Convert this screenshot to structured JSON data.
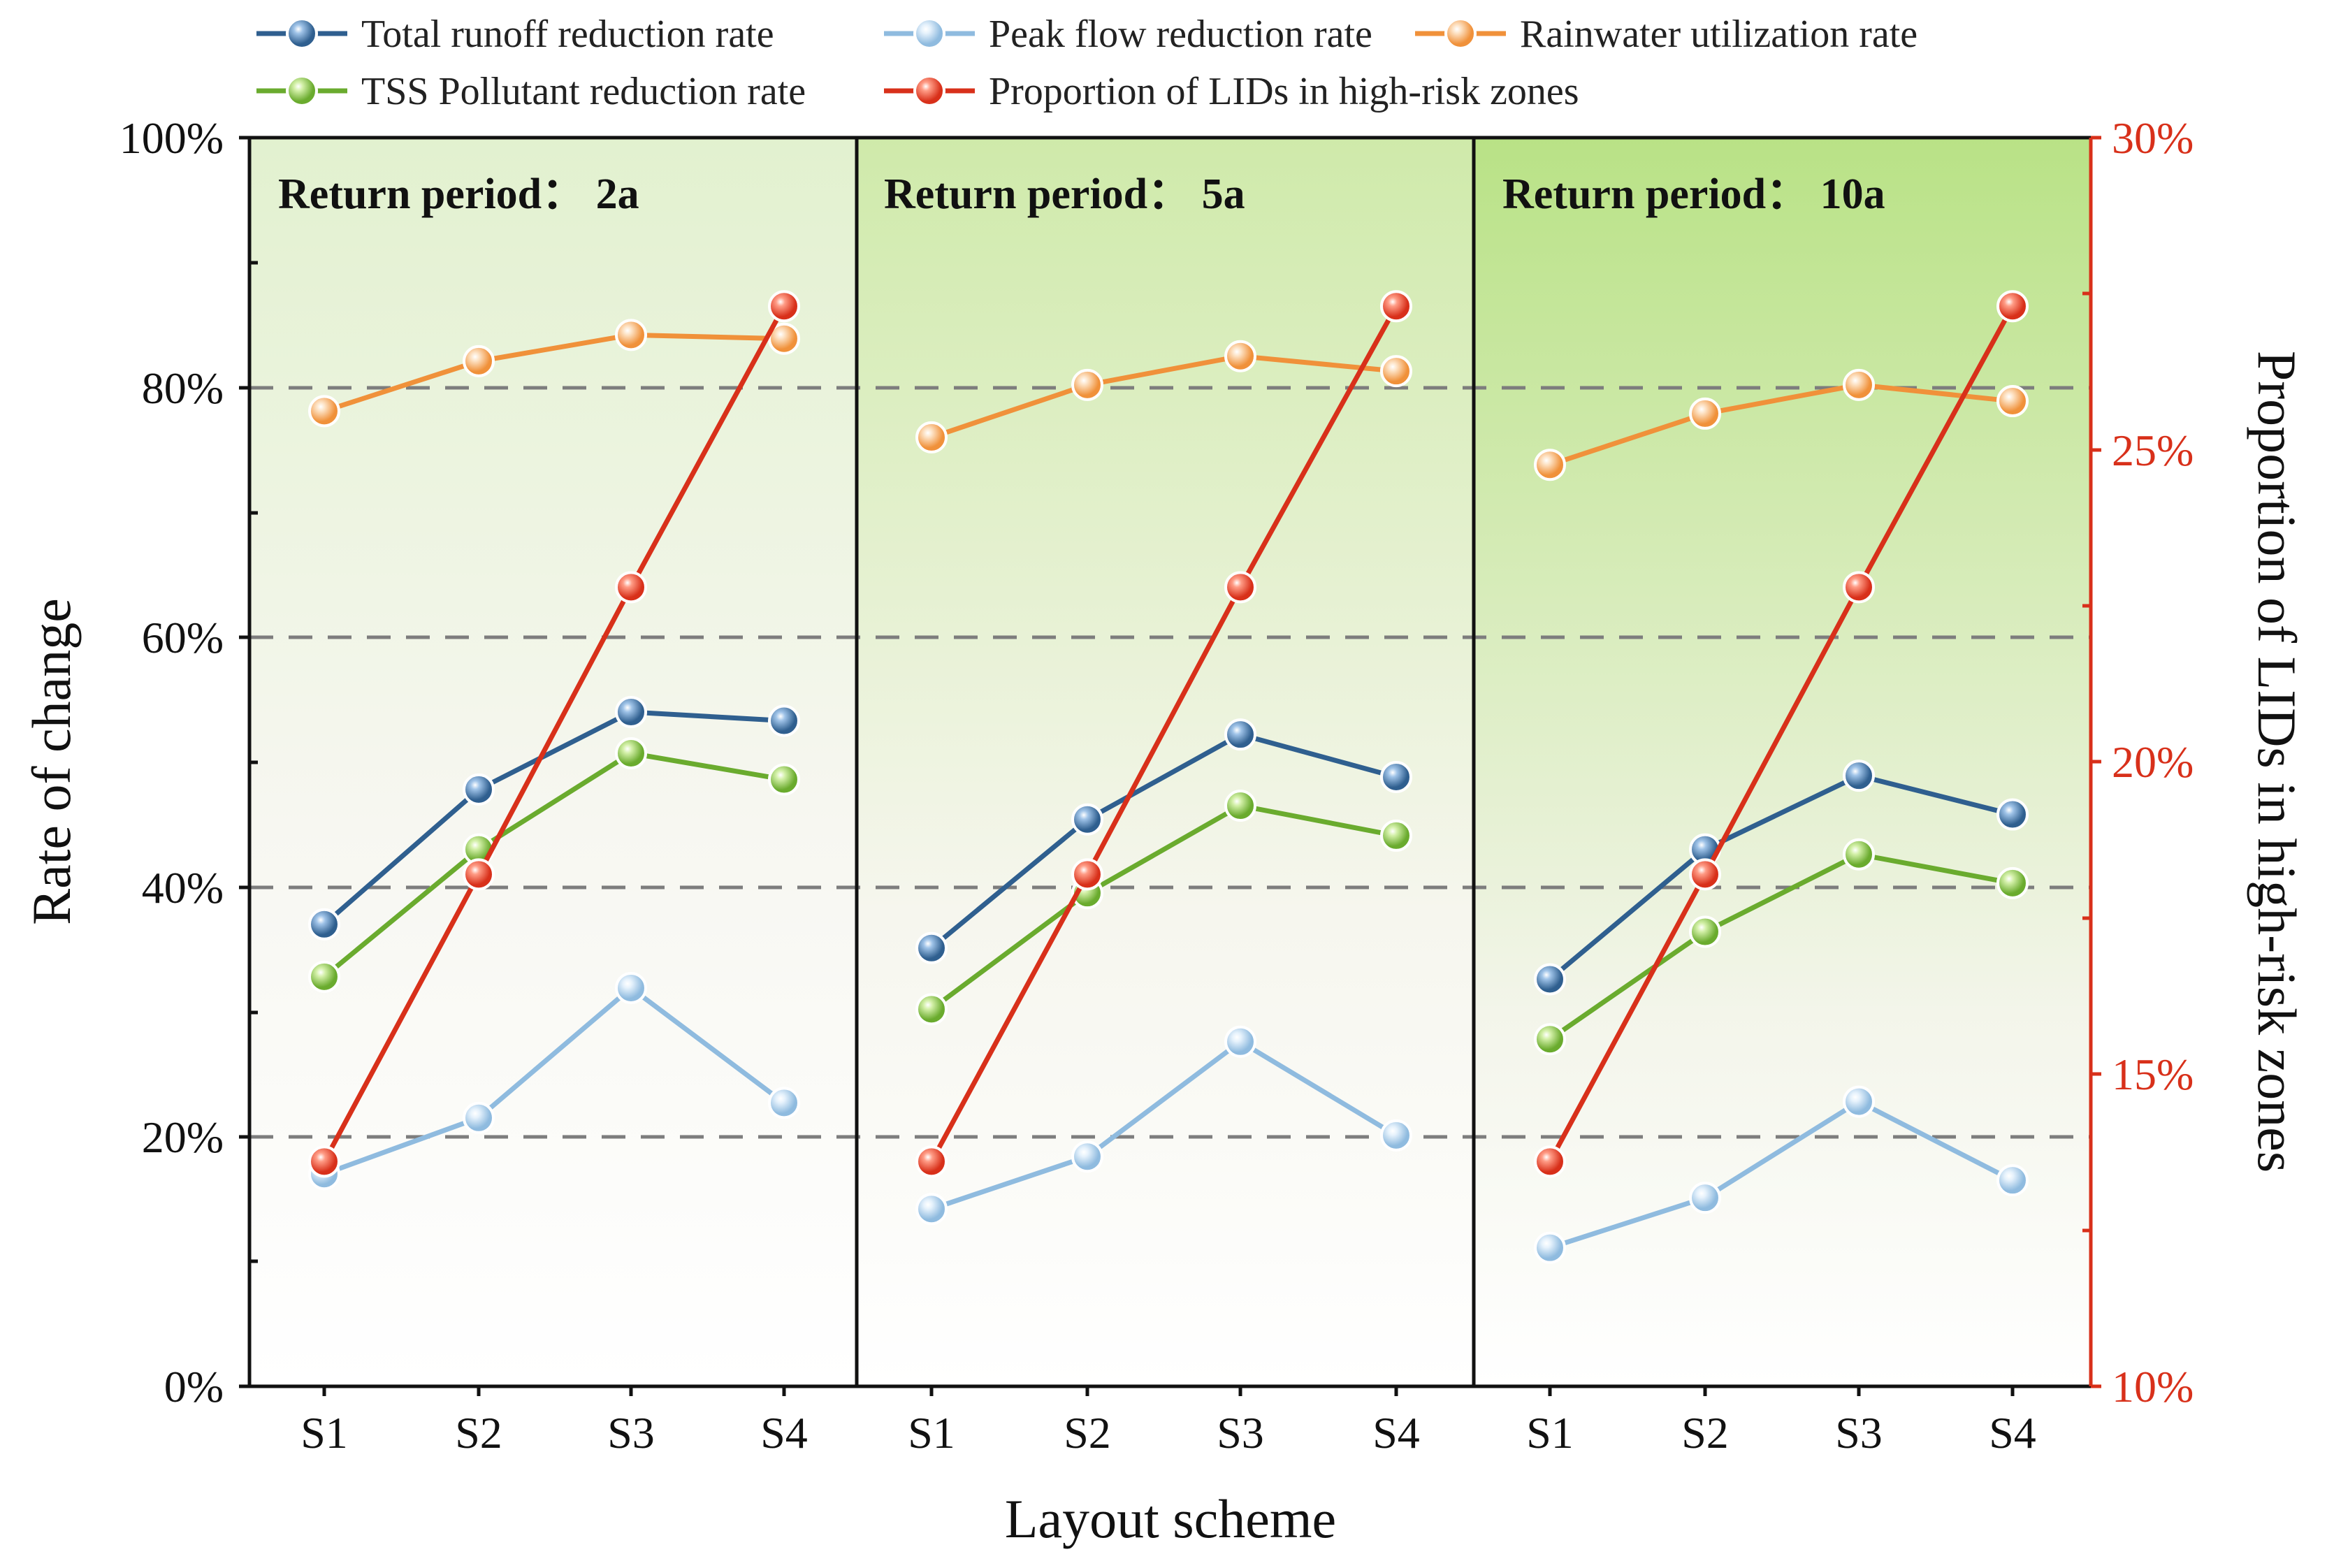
{
  "chart_data": {
    "type": "line",
    "layout": "three panels side by side sharing axes",
    "categories": [
      "S1",
      "S2",
      "S3",
      "S4"
    ],
    "xlabel": "Layout scheme",
    "ylabel": "Rate of change",
    "ylabel_right": "Proportion of LIDs in high-risk zones",
    "ylim": [
      0,
      100
    ],
    "ylim_right": [
      10,
      30
    ],
    "yticks": [
      "0%",
      "20%",
      "40%",
      "60%",
      "80%",
      "100%"
    ],
    "yticks_right": [
      "10%",
      "15%",
      "20%",
      "25%",
      "30%"
    ],
    "gridlines": "dashed at 20%, 40%, 60%, 80%",
    "legend_position": "top",
    "series_meta": [
      {
        "key": "total",
        "name": "Total runoff reduction rate",
        "color": "#2f5f8f",
        "highlight": "#9fc3e8",
        "axis": "left"
      },
      {
        "key": "peak",
        "name": "Peak flow reduction rate",
        "color": "#8fbbdf",
        "highlight": "#e6f2fc",
        "axis": "left"
      },
      {
        "key": "rain",
        "name": "Rainwater utilization rate",
        "color": "#f0913a",
        "highlight": "#fde2c4",
        "axis": "left"
      },
      {
        "key": "tss",
        "name": "TSS Pollutant reduction rate",
        "color": "#6aab2e",
        "highlight": "#d3f0a8",
        "axis": "left"
      },
      {
        "key": "prop",
        "name": "Proportion of LIDs in high-risk zones",
        "color": "#d8301a",
        "highlight": "#ff9c86",
        "axis": "right"
      }
    ],
    "panels": [
      {
        "title": "Return period： 2a",
        "series": {
          "total": [
            37,
            47.8,
            54,
            53.3
          ],
          "peak": [
            17,
            21.5,
            31.9,
            22.7
          ],
          "rain": [
            78.1,
            82.1,
            84.2,
            83.9
          ],
          "tss": [
            32.8,
            43,
            50.7,
            48.6
          ],
          "prop": [
            13.6,
            18.2,
            22.8,
            27.3
          ]
        }
      },
      {
        "title": "Return period： 5a",
        "series": {
          "total": [
            35.1,
            45.4,
            52.2,
            48.8
          ],
          "peak": [
            14.2,
            18.4,
            27.6,
            20.1
          ],
          "rain": [
            76,
            80.2,
            82.5,
            81.3
          ],
          "tss": [
            30.2,
            39.5,
            46.5,
            44.1
          ],
          "prop": [
            13.6,
            18.2,
            22.8,
            27.3
          ]
        }
      },
      {
        "title": "Return period： 10a",
        "series": {
          "total": [
            32.6,
            43,
            48.9,
            45.8
          ],
          "peak": [
            11.1,
            15.1,
            22.8,
            16.5
          ],
          "rain": [
            73.8,
            77.9,
            80.2,
            78.9
          ],
          "tss": [
            27.8,
            36.4,
            42.6,
            40.3
          ],
          "prop": [
            13.6,
            18.2,
            22.8,
            27.3
          ]
        }
      }
    ]
  }
}
